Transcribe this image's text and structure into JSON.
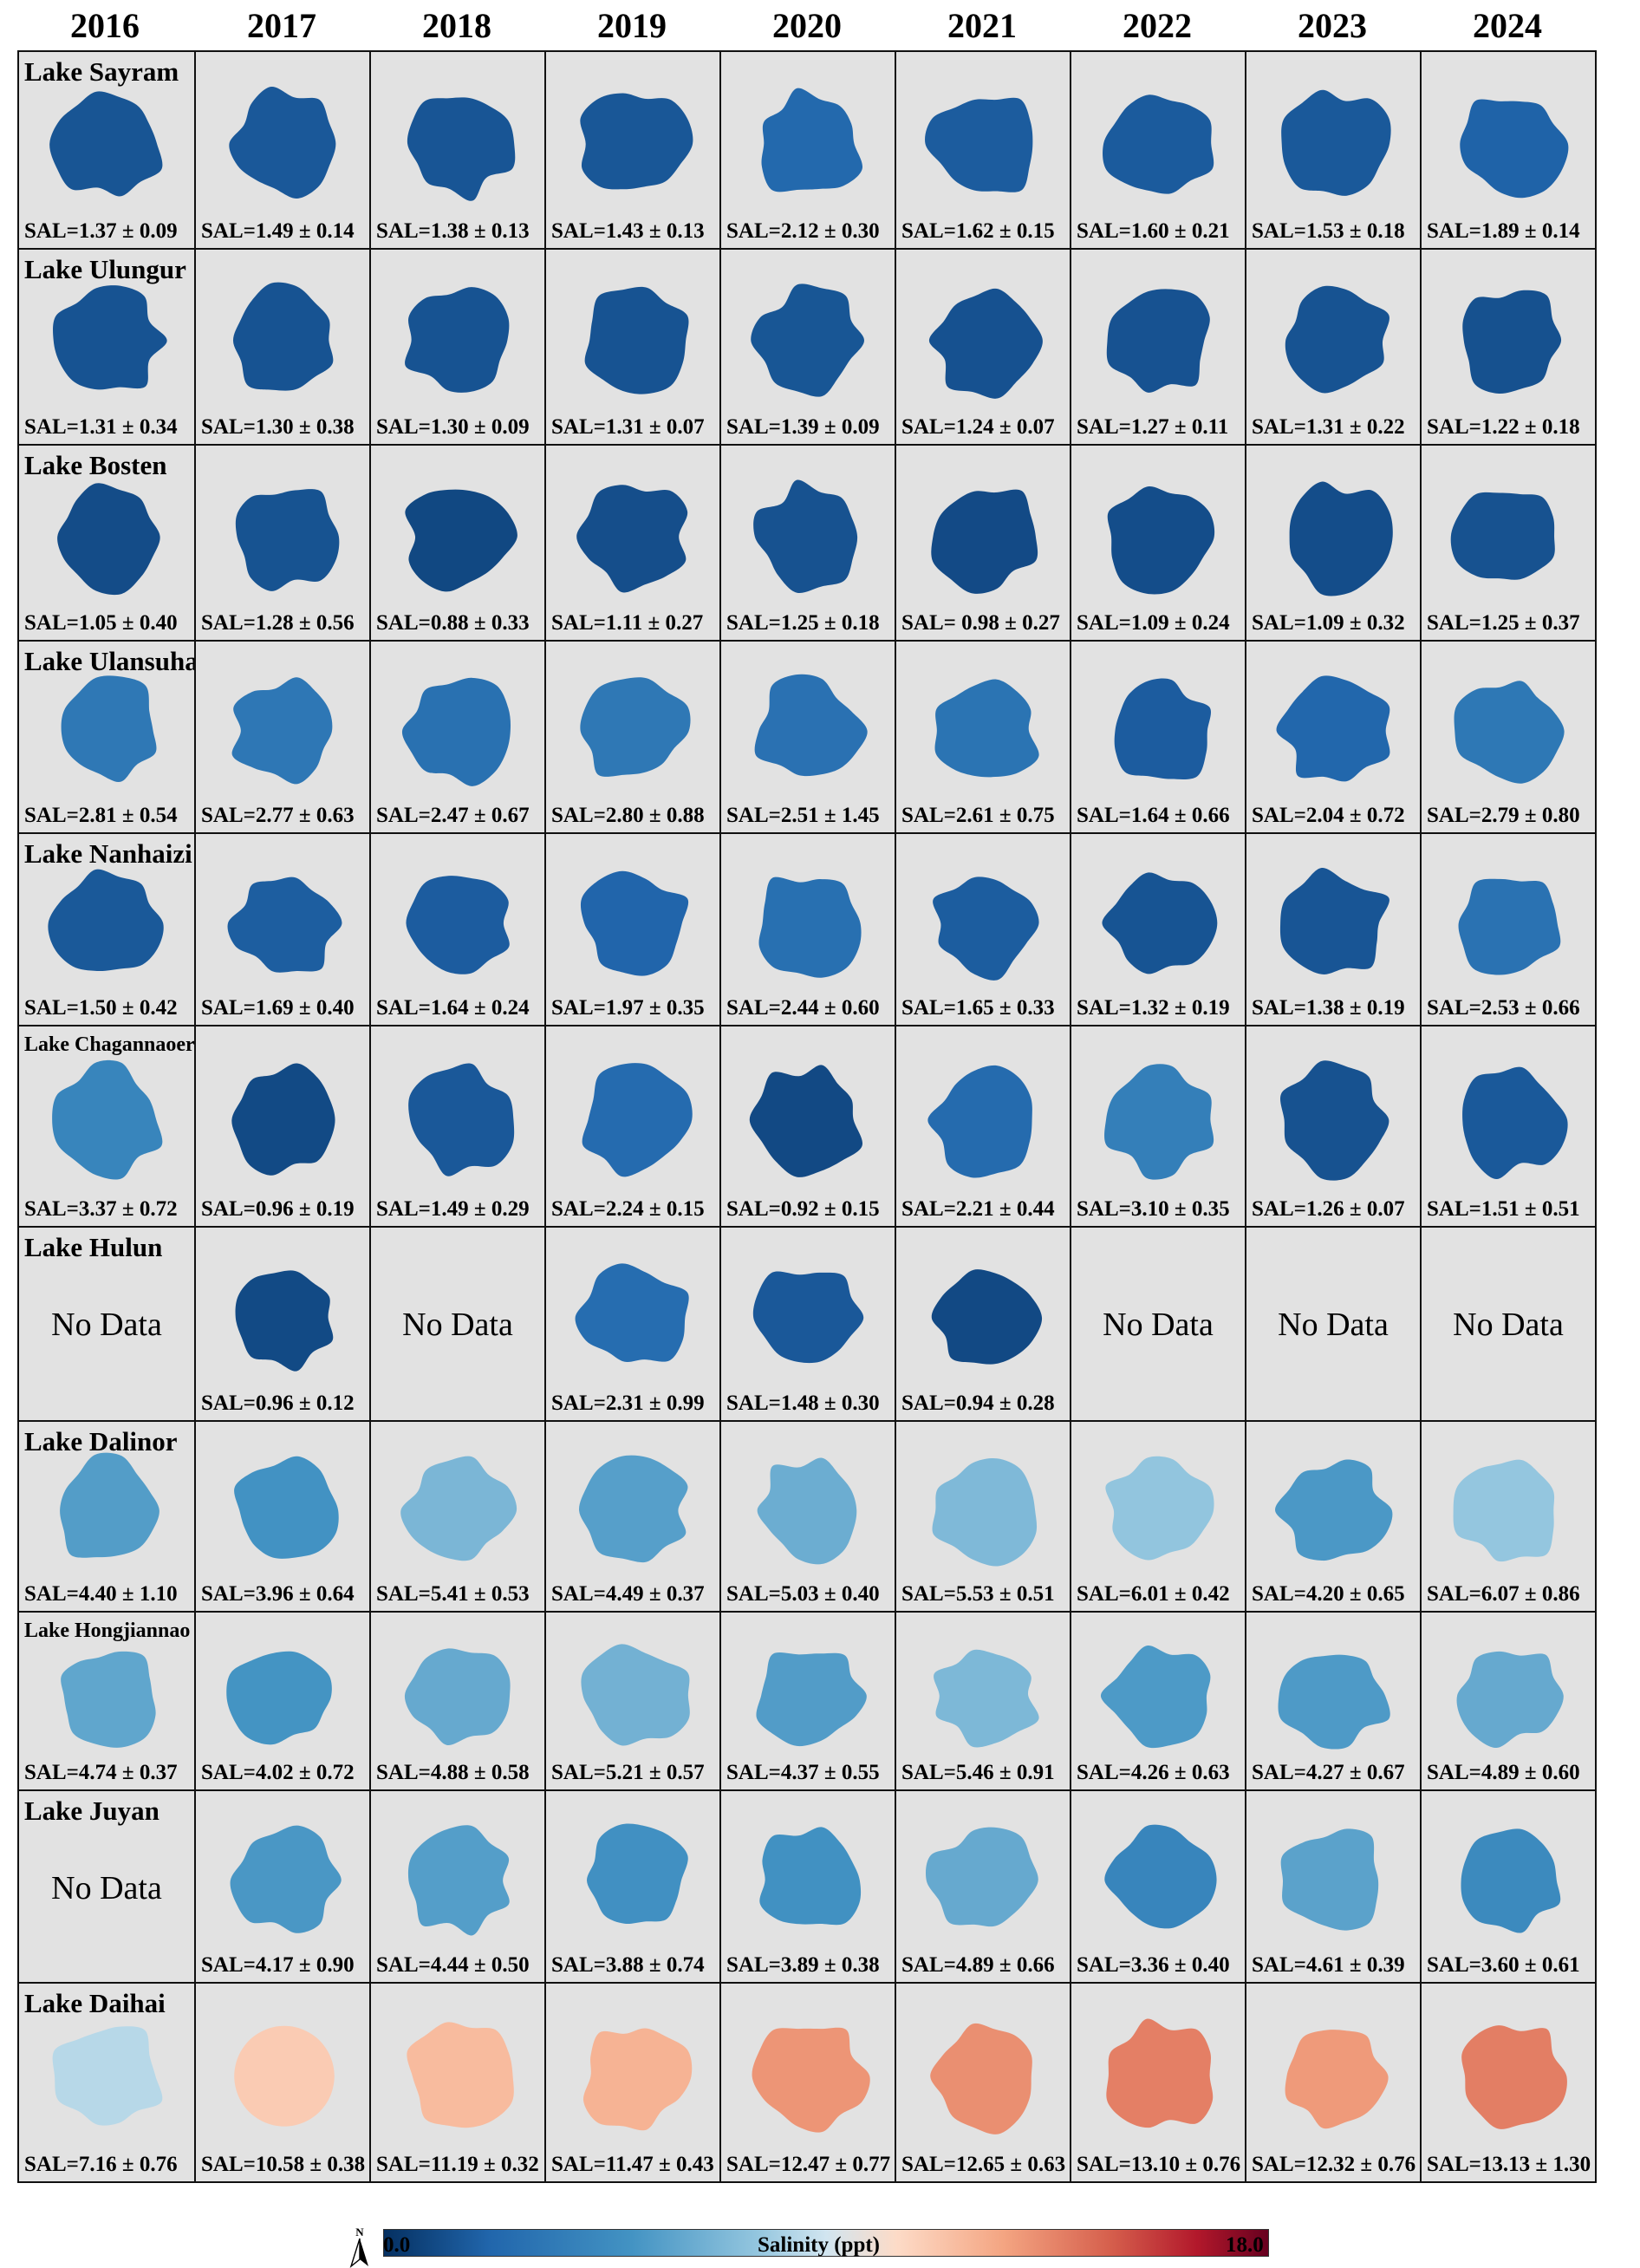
{
  "years": [
    "2016",
    "2017",
    "2018",
    "2019",
    "2020",
    "2021",
    "2022",
    "2023",
    "2024"
  ],
  "no_data_label": "No Data",
  "lakes": [
    {
      "name": "Lake Sayram",
      "values": [
        "SAL=1.37 ± 0.09",
        "SAL=1.49 ± 0.14",
        "SAL=1.38 ± 0.13",
        "SAL=1.43 ± 0.13",
        "SAL=2.12 ± 0.30",
        "SAL=1.62 ± 0.15",
        "SAL=1.60 ± 0.21",
        "SAL=1.53 ± 0.18",
        "SAL=1.89 ± 0.14"
      ]
    },
    {
      "name": "Lake Ulungur",
      "values": [
        "SAL=1.31 ± 0.34",
        "SAL=1.30 ± 0.38",
        "SAL=1.30 ± 0.09",
        "SAL=1.31 ± 0.07",
        "SAL=1.39 ± 0.09",
        "SAL=1.24 ± 0.07",
        "SAL=1.27 ± 0.11",
        "SAL=1.31 ± 0.22",
        "SAL=1.22 ± 0.18"
      ]
    },
    {
      "name": "Lake Bosten",
      "values": [
        "SAL=1.05 ± 0.40",
        "SAL=1.28 ± 0.56",
        "SAL=0.88 ± 0.33",
        "SAL=1.11 ± 0.27",
        "SAL=1.25 ± 0.18",
        "SAL= 0.98 ± 0.27",
        "SAL=1.09 ± 0.24",
        "SAL=1.09 ± 0.32",
        "SAL=1.25 ± 0.37"
      ]
    },
    {
      "name": "Lake Ulansuhai",
      "values": [
        "SAL=2.81 ± 0.54",
        "SAL=2.77 ± 0.63",
        "SAL=2.47 ± 0.67",
        "SAL=2.80 ± 0.88",
        "SAL=2.51 ± 1.45",
        "SAL=2.61 ± 0.75",
        "SAL=1.64 ± 0.66",
        "SAL=2.04 ± 0.72",
        "SAL=2.79 ± 0.80"
      ]
    },
    {
      "name": "Lake Nanhaizi",
      "values": [
        "SAL=1.50 ± 0.42",
        "SAL=1.69 ± 0.40",
        "SAL=1.64 ± 0.24",
        "SAL=1.97 ± 0.35",
        "SAL=2.44 ± 0.60",
        "SAL=1.65 ± 0.33",
        "SAL=1.32 ± 0.19",
        "SAL=1.38 ± 0.19",
        "SAL=2.53 ± 0.66"
      ]
    },
    {
      "name": "Lake Chagannaoer",
      "values": [
        "SAL=3.37 ± 0.72",
        "SAL=0.96 ± 0.19",
        "SAL=1.49 ± 0.29",
        "SAL=2.24 ± 0.15",
        "SAL=0.92 ± 0.15",
        "SAL=2.21 ± 0.44",
        "SAL=3.10 ± 0.35",
        "SAL=1.26 ± 0.07",
        "SAL=1.51 ± 0.51"
      ]
    },
    {
      "name": "Lake Hulun",
      "values": [
        null,
        "SAL=0.96 ± 0.12",
        null,
        "SAL=2.31 ± 0.99",
        "SAL=1.48 ± 0.30",
        "SAL=0.94 ± 0.28",
        null,
        null,
        null
      ]
    },
    {
      "name": "Lake Dalinor",
      "values": [
        "SAL=4.40 ± 1.10",
        "SAL=3.96 ± 0.64",
        "SAL=5.41 ± 0.53",
        "SAL=4.49 ± 0.37",
        "SAL=5.03 ± 0.40",
        "SAL=5.53 ± 0.51",
        "SAL=6.01 ± 0.42",
        "SAL=4.20 ± 0.65",
        "SAL=6.07 ± 0.86"
      ]
    },
    {
      "name": "Lake Hongjiannao",
      "values": [
        "SAL=4.74 ± 0.37",
        "SAL=4.02 ± 0.72",
        "SAL=4.88 ± 0.58",
        "SAL=5.21 ± 0.57",
        "SAL=4.37 ± 0.55",
        "SAL=5.46 ± 0.91",
        "SAL=4.26 ± 0.63",
        "SAL=4.27 ± 0.67",
        "SAL=4.89 ± 0.60"
      ]
    },
    {
      "name": "Lake Juyan",
      "values": [
        null,
        "SAL=4.17 ± 0.90",
        "SAL=4.44 ± 0.50",
        "SAL=3.88 ± 0.74",
        "SAL=3.89 ± 0.38",
        "SAL=4.89 ± 0.66",
        "SAL=3.36 ± 0.40",
        "SAL=4.61 ± 0.39",
        "SAL=3.60 ± 0.61"
      ]
    },
    {
      "name": "Lake Daihai",
      "values": [
        "SAL=7.16 ± 0.76",
        "SAL=10.58 ± 0.38",
        "SAL=11.19 ± 0.32",
        "SAL=11.47 ± 0.43",
        "SAL=12.47 ± 0.77",
        "SAL=12.65 ± 0.63",
        "SAL=13.10 ± 0.76",
        "SAL=12.32 ± 0.76",
        "SAL=13.13 ± 1.30"
      ]
    }
  ],
  "chart_data": {
    "type": "heatmap",
    "title": "",
    "x": [
      "2016",
      "2017",
      "2018",
      "2019",
      "2020",
      "2021",
      "2022",
      "2023",
      "2024"
    ],
    "y": [
      "Lake Sayram",
      "Lake Ulungur",
      "Lake Bosten",
      "Lake Ulansuhai",
      "Lake Nanhaizi",
      "Lake Chagannaoer",
      "Lake Hulun",
      "Lake Dalinor",
      "Lake Hongjiannao",
      "Lake Juyan",
      "Lake Daihai"
    ],
    "mean": [
      [
        1.37,
        1.49,
        1.38,
        1.43,
        2.12,
        1.62,
        1.6,
        1.53,
        1.89
      ],
      [
        1.31,
        1.3,
        1.3,
        1.31,
        1.39,
        1.24,
        1.27,
        1.31,
        1.22
      ],
      [
        1.05,
        1.28,
        0.88,
        1.11,
        1.25,
        0.98,
        1.09,
        1.09,
        1.25
      ],
      [
        2.81,
        2.77,
        2.47,
        2.8,
        2.51,
        2.61,
        1.64,
        2.04,
        2.79
      ],
      [
        1.5,
        1.69,
        1.64,
        1.97,
        2.44,
        1.65,
        1.32,
        1.38,
        2.53
      ],
      [
        3.37,
        0.96,
        1.49,
        2.24,
        0.92,
        2.21,
        3.1,
        1.26,
        1.51
      ],
      [
        null,
        0.96,
        null,
        2.31,
        1.48,
        0.94,
        null,
        null,
        null
      ],
      [
        4.4,
        3.96,
        5.41,
        4.49,
        5.03,
        5.53,
        6.01,
        4.2,
        6.07
      ],
      [
        4.74,
        4.02,
        4.88,
        5.21,
        4.37,
        5.46,
        4.26,
        4.27,
        4.89
      ],
      [
        null,
        4.17,
        4.44,
        3.88,
        3.89,
        4.89,
        3.36,
        4.61,
        3.6
      ],
      [
        7.16,
        10.58,
        11.19,
        11.47,
        12.47,
        12.65,
        13.1,
        12.32,
        13.13
      ]
    ],
    "sd": [
      [
        0.09,
        0.14,
        0.13,
        0.13,
        0.3,
        0.15,
        0.21,
        0.18,
        0.14
      ],
      [
        0.34,
        0.38,
        0.09,
        0.07,
        0.09,
        0.07,
        0.11,
        0.22,
        0.18
      ],
      [
        0.4,
        0.56,
        0.33,
        0.27,
        0.18,
        0.27,
        0.24,
        0.32,
        0.37
      ],
      [
        0.54,
        0.63,
        0.67,
        0.88,
        1.45,
        0.75,
        0.66,
        0.72,
        0.8
      ],
      [
        0.42,
        0.4,
        0.24,
        0.35,
        0.6,
        0.33,
        0.19,
        0.19,
        0.66
      ],
      [
        0.72,
        0.19,
        0.29,
        0.15,
        0.15,
        0.44,
        0.35,
        0.07,
        0.51
      ],
      [
        null,
        0.12,
        null,
        0.99,
        0.3,
        0.28,
        null,
        null,
        null
      ],
      [
        1.1,
        0.64,
        0.53,
        0.37,
        0.4,
        0.51,
        0.42,
        0.65,
        0.86
      ],
      [
        0.37,
        0.72,
        0.58,
        0.57,
        0.55,
        0.91,
        0.63,
        0.67,
        0.6
      ],
      [
        null,
        0.9,
        0.5,
        0.74,
        0.38,
        0.66,
        0.4,
        0.39,
        0.61
      ],
      [
        0.76,
        0.38,
        0.32,
        0.43,
        0.77,
        0.63,
        0.76,
        0.76,
        1.3
      ]
    ],
    "colorbar": {
      "label": "Salinity (ppt)",
      "min_label": "0.0",
      "max_label": "18.0",
      "range": [
        0,
        18
      ],
      "colors": [
        "#053061",
        "#2166ac",
        "#4393c3",
        "#92c5de",
        "#d1e5f0",
        "#fddbc7",
        "#f4a582",
        "#d6604d",
        "#b2182b",
        "#67001f"
      ]
    }
  }
}
